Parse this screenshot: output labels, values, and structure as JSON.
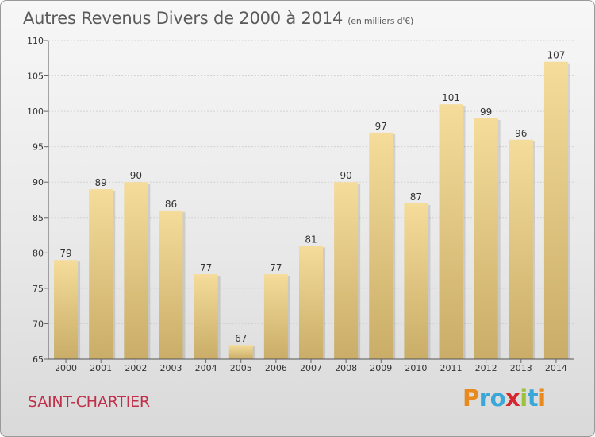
{
  "header": {
    "title": "Autres Revenus Divers de 2000 à 2014",
    "unit": "(en milliers d'€)"
  },
  "footer": {
    "commune": "SAINT-CHARTIER",
    "logo_letters": [
      "P",
      "r",
      "o",
      "x",
      "i",
      "t",
      "i"
    ],
    "logo_colors": [
      "#e98a1f",
      "#3aa7d9",
      "#3aa7d9",
      "#d8262e",
      "#9ac23c",
      "#3aa7d9",
      "#e98a1f"
    ]
  },
  "chart_data": {
    "type": "bar",
    "title": "Autres Revenus Divers de 2000 à 2014",
    "subtitle": "(en milliers d'€)",
    "xlabel": "",
    "ylabel": "",
    "categories": [
      "2000",
      "2001",
      "2002",
      "2003",
      "2004",
      "2005",
      "2006",
      "2007",
      "2008",
      "2009",
      "2010",
      "2011",
      "2012",
      "2013",
      "2014"
    ],
    "values": [
      79,
      89,
      90,
      86,
      77,
      67,
      77,
      81,
      90,
      97,
      87,
      101,
      99,
      96,
      107
    ],
    "ylim": [
      65,
      110
    ],
    "yticks": [
      65,
      70,
      75,
      80,
      85,
      90,
      95,
      100,
      105,
      110
    ],
    "grid": true,
    "bar_color_top": "#f5dc9a",
    "bar_color_bottom": "#c9ad68"
  }
}
